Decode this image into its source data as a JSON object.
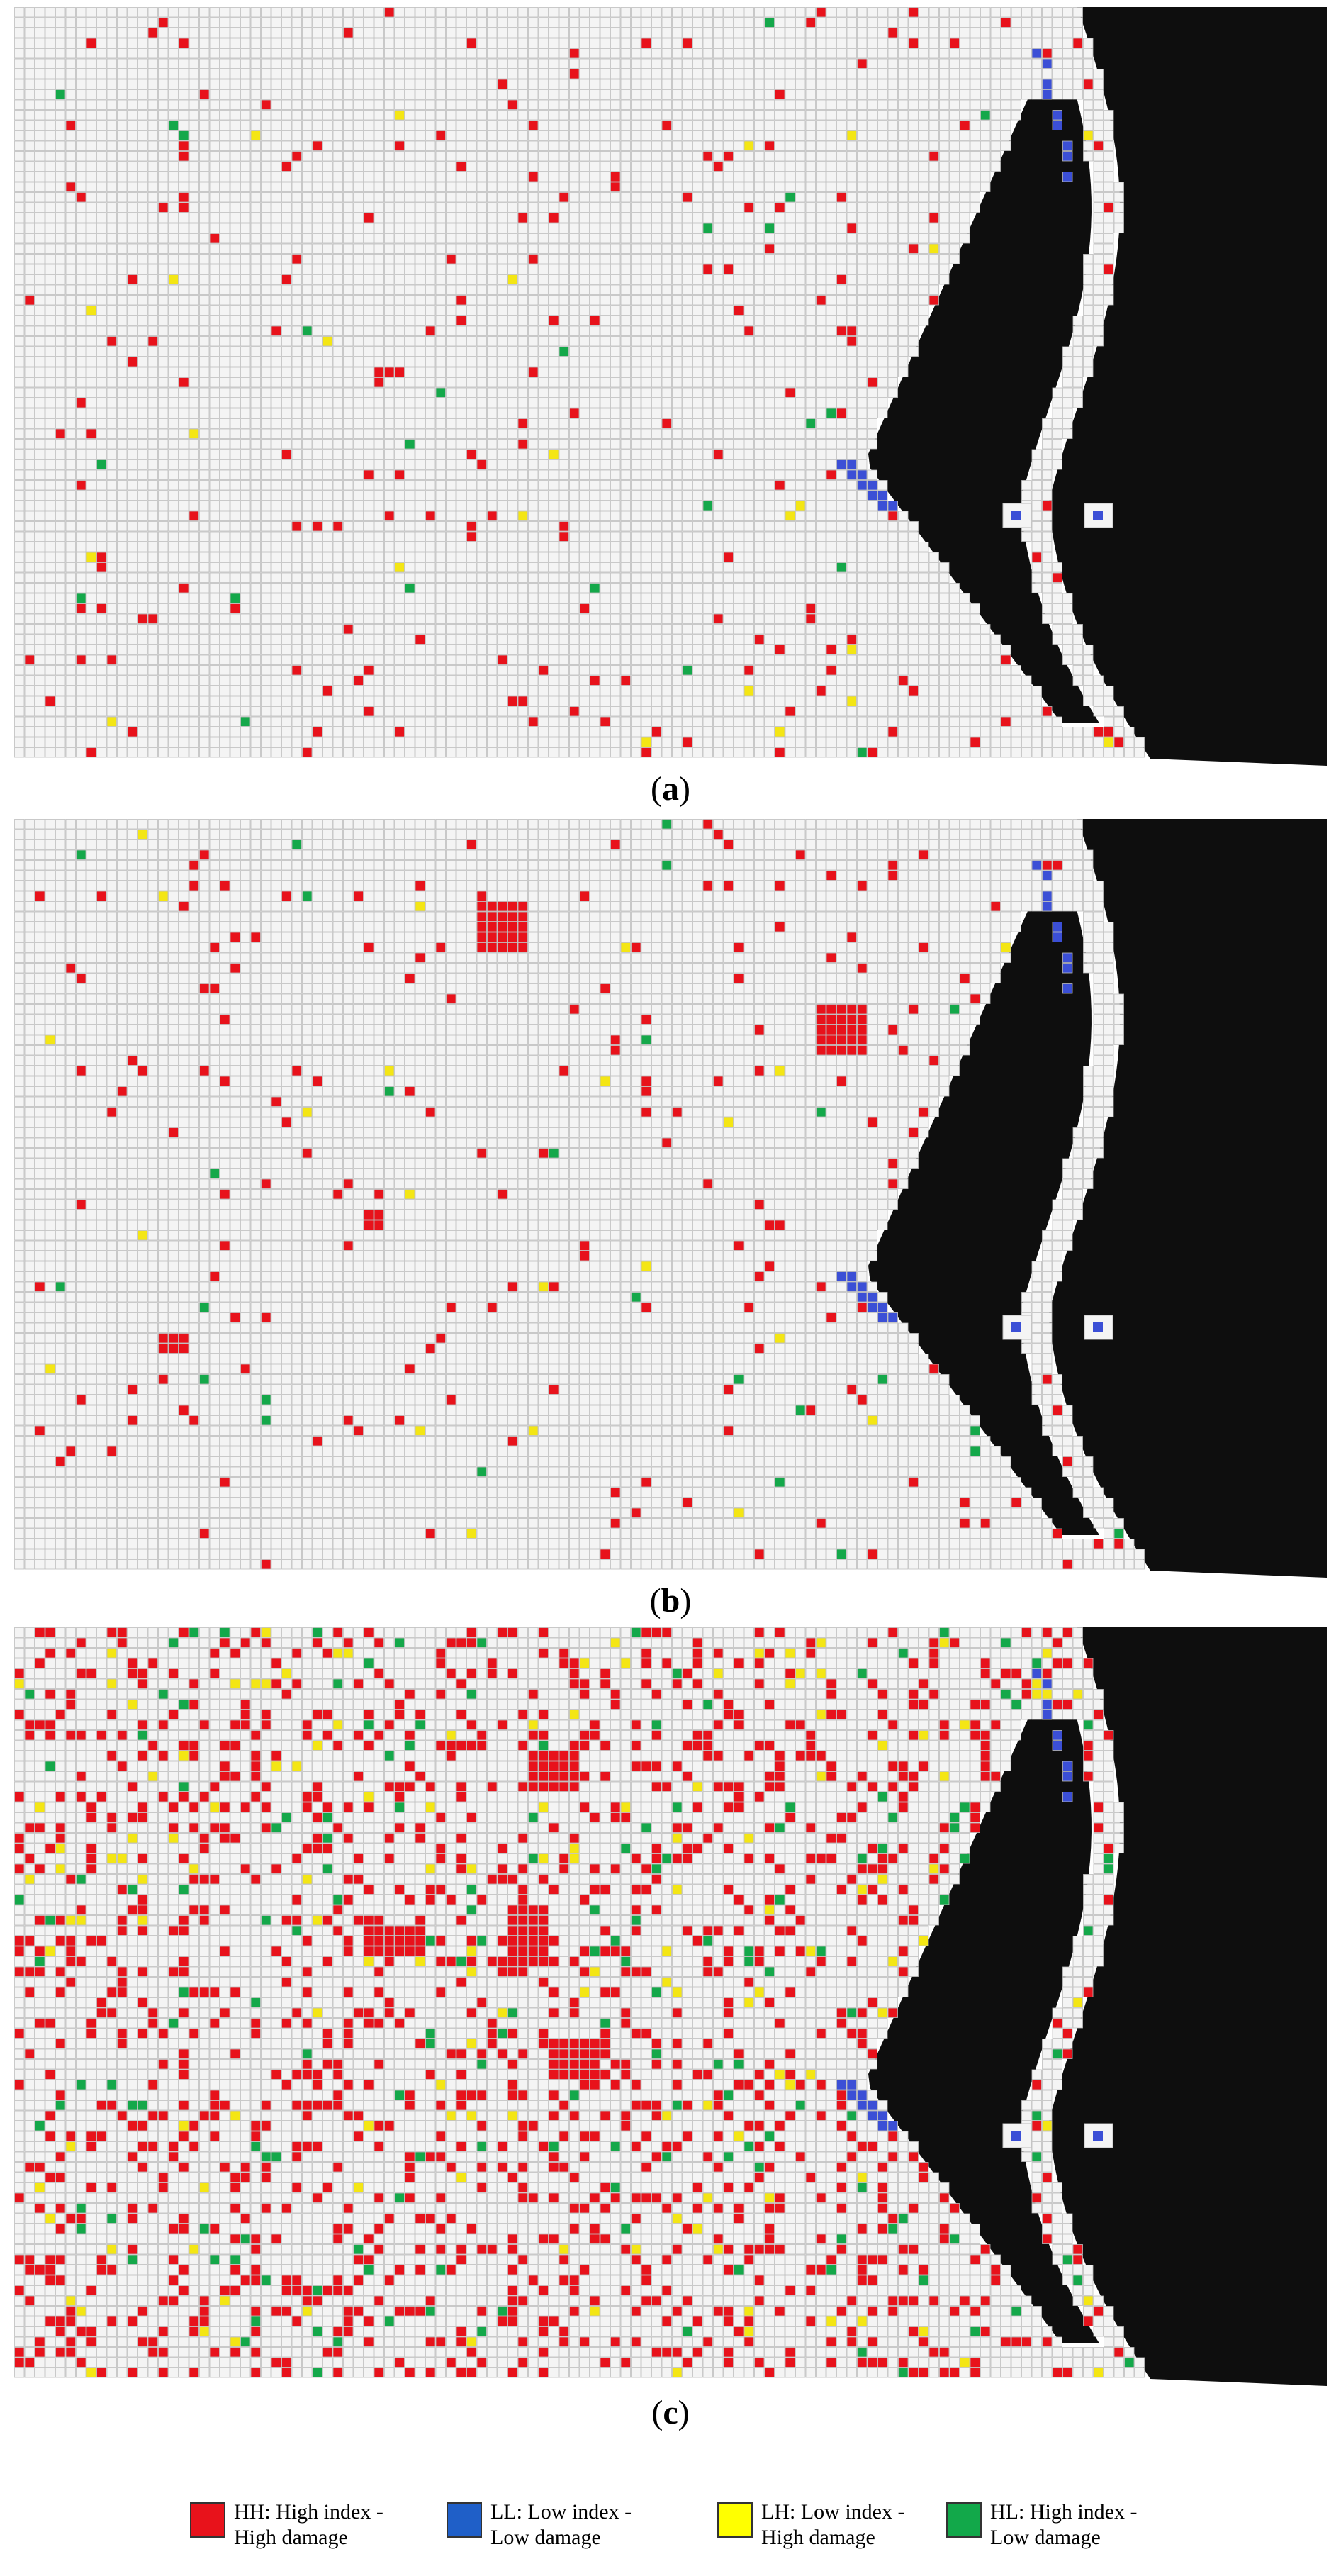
{
  "panels": [
    {
      "label": "a",
      "caption_open": "(",
      "caption_close": ")"
    },
    {
      "label": "b",
      "caption_open": "(",
      "caption_close": ")"
    },
    {
      "label": "c",
      "caption_open": "(",
      "caption_close": ")"
    }
  ],
  "legend": [
    {
      "line1": "HH: High index -",
      "line2": "High damage",
      "color": "#e8121b"
    },
    {
      "line1": "LL: Low index -",
      "line2": "Low damage",
      "color": "#1f5fc8"
    },
    {
      "line1": "LH: Low index -",
      "line2": "High damage",
      "color": "#ffff00"
    },
    {
      "line1": "HL: High index -",
      "line2": "Low damage",
      "color": "#12a84a"
    }
  ],
  "colors": {
    "cell_fill": "#f4f4f4",
    "cell_border": "#bdbdbd",
    "water": "#0e0e0e",
    "HH": "#e8121b",
    "LL": "#3b4fd6",
    "LH": "#f4e614",
    "HL": "#14a84a"
  }
}
